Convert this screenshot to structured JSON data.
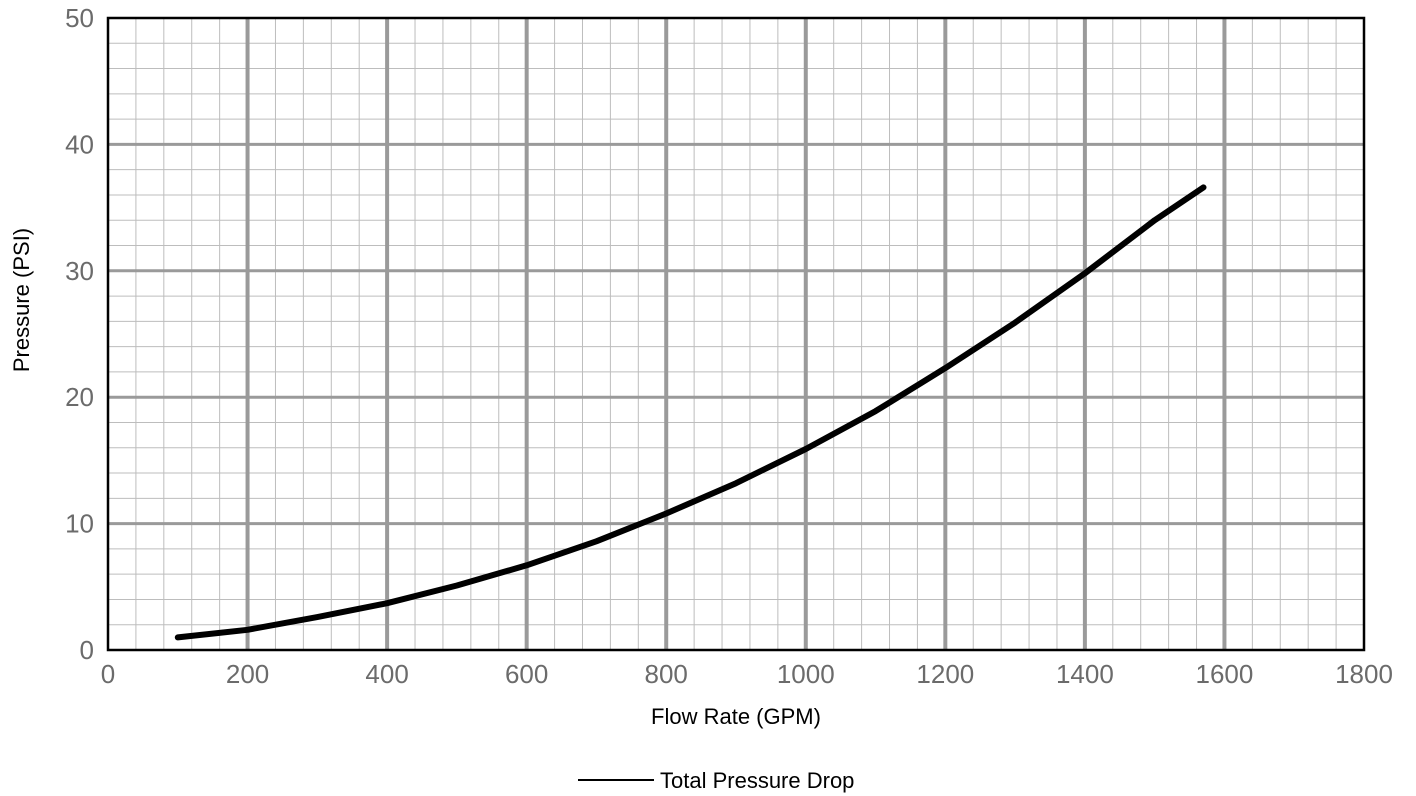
{
  "chart_data": {
    "type": "line",
    "title": "",
    "xlabel": "Flow Rate (GPM)",
    "ylabel": "Pressure (PSI)",
    "xlim": [
      0,
      1800
    ],
    "ylim": [
      0,
      50
    ],
    "x_ticks": [
      "0",
      "200",
      "400",
      "600",
      "800",
      "1000",
      "1200",
      "1400",
      "1600",
      "1800"
    ],
    "y_ticks": [
      "0",
      "10",
      "20",
      "30",
      "40",
      "50"
    ],
    "grid": true,
    "legend_position": "bottom-center",
    "series": [
      {
        "name": "Total Pressure Drop",
        "color": "#000000",
        "x": [
          100,
          200,
          300,
          400,
          500,
          600,
          700,
          800,
          900,
          1000,
          1100,
          1200,
          1300,
          1400,
          1500,
          1570
        ],
        "y": [
          1.0,
          1.6,
          2.6,
          3.7,
          5.1,
          6.7,
          8.6,
          10.8,
          13.2,
          15.9,
          18.9,
          22.3,
          25.9,
          29.8,
          34.0,
          36.6
        ]
      }
    ]
  },
  "colors": {
    "major_grid": "#9a9a9a",
    "minor_grid": "#bdbdbd",
    "frame": "#000000",
    "tick_text": "#6b6b6b"
  }
}
